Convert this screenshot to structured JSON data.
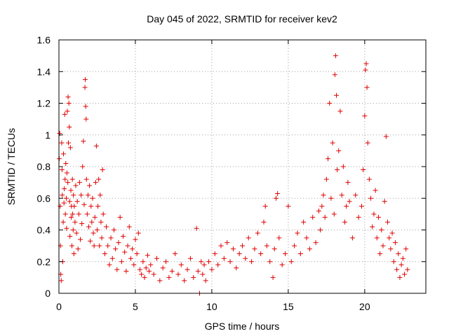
{
  "chart_data": {
    "type": "scatter",
    "title": "Day 045 of 2022, SRMTID for receiver kev2",
    "xlabel": "GPS time / hours",
    "ylabel": "SRMTID / TECUs",
    "xlim": [
      0,
      24
    ],
    "ylim": [
      0,
      1.6
    ],
    "xticks": [
      0,
      5,
      10,
      15,
      20
    ],
    "xtick_labels": [
      "0",
      "5",
      "10",
      "15",
      "20"
    ],
    "yticks": [
      0,
      0.2,
      0.4,
      0.6,
      0.8,
      1,
      1.2,
      1.4,
      1.6
    ],
    "ytick_labels": [
      "0",
      "0.2",
      "0.4",
      "0.6",
      "0.8",
      "1",
      "1.2",
      "1.4",
      "1.6"
    ],
    "grid": true,
    "marker": "+",
    "color": "#e00000",
    "series": [
      {
        "name": "SRMTID",
        "points": [
          [
            0.02,
            0.85
          ],
          [
            0.05,
            1.01
          ],
          [
            0.08,
            0.55
          ],
          [
            0.1,
            0.3
          ],
          [
            0.12,
            0.12
          ],
          [
            0.15,
            0.08
          ],
          [
            0.18,
            0.95
          ],
          [
            0.2,
            0.78
          ],
          [
            0.22,
            0.62
          ],
          [
            0.25,
            0.2
          ],
          [
            0.28,
            0.45
          ],
          [
            0.3,
            0.88
          ],
          [
            0.33,
            0.57
          ],
          [
            0.35,
            0.66
          ],
          [
            0.38,
            1.13
          ],
          [
            0.4,
            0.72
          ],
          [
            0.42,
            0.5
          ],
          [
            0.45,
            0.82
          ],
          [
            0.48,
            0.6
          ],
          [
            0.5,
            0.41
          ],
          [
            0.52,
            0.76
          ],
          [
            0.55,
            1.15
          ],
          [
            0.58,
            0.7
          ],
          [
            0.6,
            1.24
          ],
          [
            0.62,
            0.95
          ],
          [
            0.65,
            1.2
          ],
          [
            0.68,
            1.05
          ],
          [
            0.7,
            0.58
          ],
          [
            0.72,
            0.36
          ],
          [
            0.75,
            0.92
          ],
          [
            0.78,
            0.65
          ],
          [
            0.8,
            0.48
          ],
          [
            0.82,
            0.55
          ],
          [
            0.85,
            0.3
          ],
          [
            0.88,
            0.72
          ],
          [
            0.9,
            0.5
          ],
          [
            0.93,
            0.4
          ],
          [
            0.95,
            0.62
          ],
          [
            0.98,
            0.25
          ],
          [
            1.0,
            0.55
          ],
          [
            1.05,
            0.45
          ],
          [
            1.1,
            0.68
          ],
          [
            1.15,
            0.38
          ],
          [
            1.2,
            0.58
          ],
          [
            1.25,
            0.28
          ],
          [
            1.3,
            0.5
          ],
          [
            1.35,
            0.7
          ],
          [
            1.4,
            0.34
          ],
          [
            1.45,
            0.62
          ],
          [
            1.5,
            0.44
          ],
          [
            1.55,
            0.8
          ],
          [
            1.6,
            0.96
          ],
          [
            1.65,
            0.56
          ],
          [
            1.7,
            1.3
          ],
          [
            1.72,
            1.35
          ],
          [
            1.75,
            1.18
          ],
          [
            1.78,
            1.1
          ],
          [
            1.8,
            0.72
          ],
          [
            1.85,
            0.5
          ],
          [
            1.9,
            0.62
          ],
          [
            1.95,
            0.42
          ],
          [
            2.0,
            0.68
          ],
          [
            2.05,
            0.33
          ],
          [
            2.1,
            0.55
          ],
          [
            2.15,
            0.45
          ],
          [
            2.2,
            0.6
          ],
          [
            2.25,
            0.38
          ],
          [
            2.3,
            0.3
          ],
          [
            2.35,
            0.48
          ],
          [
            2.4,
            0.7
          ],
          [
            2.45,
            0.93
          ],
          [
            2.5,
            0.4
          ],
          [
            2.55,
            0.55
          ],
          [
            2.6,
            0.72
          ],
          [
            2.65,
            0.3
          ],
          [
            2.7,
            0.62
          ],
          [
            2.75,
            0.45
          ],
          [
            2.8,
            0.35
          ],
          [
            2.85,
            0.78
          ],
          [
            2.9,
            0.5
          ],
          [
            3.0,
            0.25
          ],
          [
            3.1,
            0.42
          ],
          [
            3.2,
            0.3
          ],
          [
            3.3,
            0.18
          ],
          [
            3.4,
            0.35
          ],
          [
            3.5,
            0.22
          ],
          [
            3.6,
            0.4
          ],
          [
            3.7,
            0.28
          ],
          [
            3.8,
            0.15
          ],
          [
            3.9,
            0.32
          ],
          [
            4.0,
            0.48
          ],
          [
            4.1,
            0.2
          ],
          [
            4.2,
            0.36
          ],
          [
            4.3,
            0.26
          ],
          [
            4.4,
            0.14
          ],
          [
            4.5,
            0.3
          ],
          [
            4.6,
            0.42
          ],
          [
            4.7,
            0.22
          ],
          [
            4.8,
            0.28
          ],
          [
            4.9,
            0.18
          ],
          [
            5.0,
            0.34
          ],
          [
            5.1,
            0.25
          ],
          [
            5.2,
            0.38
          ],
          [
            5.3,
            0.15
          ],
          [
            5.4,
            0.12
          ],
          [
            5.5,
            0.2
          ],
          [
            5.6,
            0.1
          ],
          [
            5.7,
            0.16
          ],
          [
            5.8,
            0.24
          ],
          [
            5.9,
            0.14
          ],
          [
            6.0,
            0.18
          ],
          [
            6.2,
            0.12
          ],
          [
            6.4,
            0.22
          ],
          [
            6.6,
            0.08
          ],
          [
            6.8,
            0.16
          ],
          [
            7.0,
            0.2
          ],
          [
            7.2,
            0.1
          ],
          [
            7.4,
            0.14
          ],
          [
            7.6,
            0.25
          ],
          [
            7.8,
            0.12
          ],
          [
            8.0,
            0.18
          ],
          [
            8.2,
            0.08
          ],
          [
            8.4,
            0.15
          ],
          [
            8.6,
            0.22
          ],
          [
            8.8,
            0.1
          ],
          [
            9.0,
            0.41
          ],
          [
            9.1,
            0.14
          ],
          [
            9.2,
            0.0
          ],
          [
            9.3,
            0.2
          ],
          [
            9.4,
            0.12
          ],
          [
            9.5,
            0.18
          ],
          [
            9.6,
            0.08
          ],
          [
            9.8,
            0.2
          ],
          [
            10.0,
            0.15
          ],
          [
            10.2,
            0.25
          ],
          [
            10.4,
            0.18
          ],
          [
            10.6,
            0.3
          ],
          [
            10.8,
            0.22
          ],
          [
            11.0,
            0.32
          ],
          [
            11.2,
            0.2
          ],
          [
            11.4,
            0.28
          ],
          [
            11.6,
            0.16
          ],
          [
            11.8,
            0.25
          ],
          [
            12.0,
            0.3
          ],
          [
            12.2,
            0.22
          ],
          [
            12.4,
            0.35
          ],
          [
            12.6,
            0.2
          ],
          [
            12.8,
            0.28
          ],
          [
            13.0,
            0.38
          ],
          [
            13.2,
            0.25
          ],
          [
            13.4,
            0.45
          ],
          [
            13.5,
            0.55
          ],
          [
            13.6,
            0.3
          ],
          [
            13.8,
            0.2
          ],
          [
            14.0,
            0.1
          ],
          [
            14.1,
            0.28
          ],
          [
            14.2,
            0.6
          ],
          [
            14.3,
            0.63
          ],
          [
            14.4,
            0.35
          ],
          [
            14.6,
            0.18
          ],
          [
            14.8,
            0.25
          ],
          [
            15.0,
            0.55
          ],
          [
            15.2,
            0.2
          ],
          [
            15.4,
            0.3
          ],
          [
            15.6,
            0.38
          ],
          [
            15.8,
            0.25
          ],
          [
            16.0,
            0.45
          ],
          [
            16.2,
            0.35
          ],
          [
            16.4,
            0.28
          ],
          [
            16.6,
            0.48
          ],
          [
            16.8,
            0.32
          ],
          [
            17.0,
            0.52
          ],
          [
            17.1,
            0.4
          ],
          [
            17.2,
            0.55
          ],
          [
            17.3,
            0.62
          ],
          [
            17.4,
            0.48
          ],
          [
            17.5,
            0.72
          ],
          [
            17.6,
            0.85
          ],
          [
            17.7,
            1.2
          ],
          [
            17.8,
            0.6
          ],
          [
            17.9,
            0.95
          ],
          [
            18.0,
            0.5
          ],
          [
            18.05,
            1.38
          ],
          [
            18.1,
            1.5
          ],
          [
            18.15,
            1.25
          ],
          [
            18.2,
            0.78
          ],
          [
            18.3,
            0.9
          ],
          [
            18.4,
            1.15
          ],
          [
            18.5,
            0.62
          ],
          [
            18.6,
            0.8
          ],
          [
            18.7,
            0.45
          ],
          [
            18.8,
            0.55
          ],
          [
            18.9,
            0.7
          ],
          [
            19.0,
            0.58
          ],
          [
            19.2,
            0.35
          ],
          [
            19.4,
            0.62
          ],
          [
            19.6,
            0.48
          ],
          [
            19.8,
            0.55
          ],
          [
            19.9,
            0.78
          ],
          [
            20.0,
            1.12
          ],
          [
            20.05,
            1.41
          ],
          [
            20.1,
            1.45
          ],
          [
            20.15,
            1.3
          ],
          [
            20.2,
            0.95
          ],
          [
            20.3,
            0.72
          ],
          [
            20.4,
            0.6
          ],
          [
            20.5,
            0.42
          ],
          [
            20.6,
            0.5
          ],
          [
            20.7,
            0.65
          ],
          [
            20.8,
            0.35
          ],
          [
            20.9,
            0.48
          ],
          [
            21.0,
            0.25
          ],
          [
            21.1,
            0.4
          ],
          [
            21.2,
            0.3
          ],
          [
            21.3,
            0.58
          ],
          [
            21.4,
            0.99
          ],
          [
            21.5,
            0.45
          ],
          [
            21.6,
            0.35
          ],
          [
            21.7,
            0.28
          ],
          [
            21.8,
            0.38
          ],
          [
            21.9,
            0.2
          ],
          [
            22.0,
            0.32
          ],
          [
            22.1,
            0.15
          ],
          [
            22.2,
            0.25
          ],
          [
            22.3,
            0.1
          ],
          [
            22.4,
            0.18
          ],
          [
            22.5,
            0.22
          ],
          [
            22.6,
            0.12
          ],
          [
            22.7,
            0.28
          ],
          [
            22.8,
            0.15
          ]
        ]
      }
    ]
  }
}
